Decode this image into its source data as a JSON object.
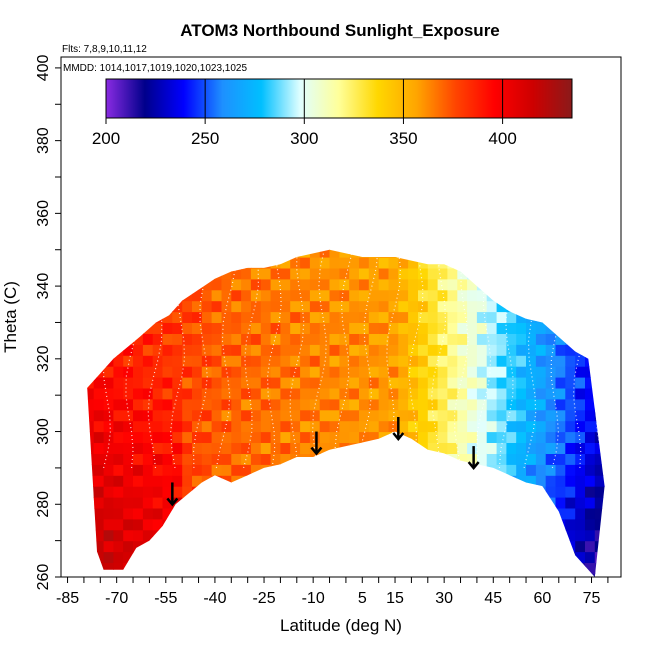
{
  "chart_data": {
    "type": "heatmap",
    "title": "ATOM3 Northbound Sunlight_Exposure",
    "flights_note": "Flts: 7,8,9,10,11,12",
    "dates_note": "MMDD: 1014,1017,1019,1020,1023,1025",
    "xlabel": "Latitude (deg N)",
    "ylabel": "Theta (C)",
    "xlim": [
      -87,
      84
    ],
    "ylim": [
      260,
      403
    ],
    "x_ticks": [
      -85,
      -70,
      -55,
      -40,
      -25,
      -10,
      5,
      15,
      30,
      45,
      60,
      75
    ],
    "y_ticks": [
      260,
      280,
      300,
      320,
      340,
      360,
      380,
      400
    ],
    "colorbar": {
      "range": [
        200,
        435
      ],
      "ticks": [
        200,
        250,
        300,
        350,
        400
      ],
      "colors": [
        "#8a2be2",
        "#00008b",
        "#0000ff",
        "#1e90ff",
        "#00bfff",
        "#e0ffff",
        "#ffff99",
        "#ffd700",
        "#ffa500",
        "#ff4500",
        "#ff0000",
        "#cd0000",
        "#8b1a1a"
      ]
    },
    "field_description": "Sunlight exposure (K) binned by latitude and potential temperature; highest values (~400-420) in the southern hemisphere below 320 C, ~350-370 across mid latitudes, decreasing to ~230-260 north of 60N",
    "arrows": [
      {
        "lat": -53,
        "theta": 286
      },
      {
        "lat": -9,
        "theta": 300
      },
      {
        "lat": 16,
        "theta": 304
      },
      {
        "lat": 39,
        "theta": 296
      }
    ],
    "coverage_bottom": {
      "lat": [
        -76,
        -74,
        -68,
        -64,
        -60,
        -56,
        -52,
        -48,
        -44,
        -40,
        -35,
        -30,
        -25,
        -20,
        -15,
        -10,
        -5,
        0,
        5,
        10,
        15,
        20,
        25,
        30,
        35,
        40,
        45,
        50,
        55,
        60,
        65,
        70,
        76
      ],
      "theta": [
        267,
        262,
        262,
        268,
        270,
        274,
        280,
        283,
        286,
        288,
        286,
        288,
        290,
        291,
        293,
        293,
        295,
        296,
        297,
        298,
        300,
        298,
        295,
        294,
        292,
        291,
        290,
        288,
        286,
        285,
        278,
        266,
        260
      ]
    },
    "coverage_top": {
      "lat": [
        -79,
        -75,
        -71,
        -67,
        -63,
        -58,
        -54,
        -50,
        -45,
        -40,
        -35,
        -30,
        -25,
        -20,
        -15,
        -10,
        -5,
        0,
        5,
        10,
        15,
        20,
        25,
        30,
        35,
        40,
        45,
        50,
        55,
        60,
        65,
        70,
        74,
        79
      ],
      "theta": [
        312,
        316,
        320,
        323,
        326,
        330,
        332,
        336,
        339,
        342,
        344,
        345,
        345,
        346,
        348,
        349,
        350,
        349,
        348,
        348,
        348,
        347,
        346,
        346,
        344,
        340,
        336,
        333,
        331,
        330,
        326,
        322,
        320,
        285
      ]
    }
  }
}
